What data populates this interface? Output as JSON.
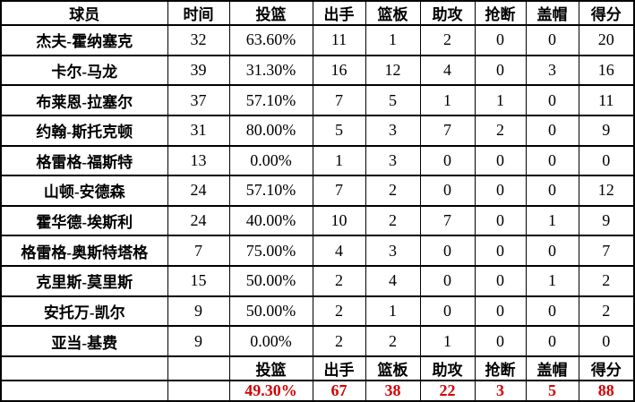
{
  "chart_data": {
    "type": "table",
    "title": "",
    "columns": [
      "球员",
      "时间",
      "投篮",
      "出手",
      "篮板",
      "助攻",
      "抢断",
      "盖帽",
      "得分"
    ],
    "rows": [
      [
        "杰夫-霍纳塞克",
        "32",
        "63.60%",
        "11",
        "1",
        "2",
        "0",
        "0",
        "20"
      ],
      [
        "卡尔-马龙",
        "39",
        "31.30%",
        "16",
        "12",
        "4",
        "0",
        "3",
        "16"
      ],
      [
        "布莱恩-拉塞尔",
        "37",
        "57.10%",
        "7",
        "5",
        "1",
        "1",
        "0",
        "11"
      ],
      [
        "约翰-斯托克顿",
        "31",
        "80.00%",
        "5",
        "3",
        "7",
        "2",
        "0",
        "9"
      ],
      [
        "格雷格-福斯特",
        "13",
        "0.00%",
        "1",
        "3",
        "0",
        "0",
        "0",
        "0"
      ],
      [
        "山顿-安德森",
        "24",
        "57.10%",
        "7",
        "2",
        "0",
        "0",
        "0",
        "12"
      ],
      [
        "霍华德-埃斯利",
        "24",
        "40.00%",
        "10",
        "2",
        "7",
        "0",
        "1",
        "9"
      ],
      [
        "格雷格-奥斯特塔格",
        "7",
        "75.00%",
        "4",
        "3",
        "0",
        "0",
        "0",
        "7"
      ],
      [
        "克里斯-莫里斯",
        "15",
        "50.00%",
        "2",
        "4",
        "0",
        "0",
        "1",
        "2"
      ],
      [
        "安托万-凯尔",
        "9",
        "50.00%",
        "2",
        "1",
        "0",
        "0",
        "0",
        "2"
      ],
      [
        "亚当-基费",
        "9",
        "0.00%",
        "2",
        "2",
        "1",
        "0",
        "0",
        "0"
      ]
    ],
    "footer_label_row": [
      "",
      "",
      "投篮",
      "出手",
      "篮板",
      "助攻",
      "抢断",
      "盖帽",
      "得分"
    ],
    "totals_row": [
      "",
      "",
      "49.30%",
      "67",
      "38",
      "22",
      "3",
      "5",
      "88"
    ],
    "colors": {
      "totals_text": "#d40000",
      "border": "#000000",
      "text": "#000000",
      "background": "#ffffff"
    },
    "layout_hints": {
      "grid": "full-borders",
      "header_position": "top",
      "totals_position": "bottom"
    }
  }
}
